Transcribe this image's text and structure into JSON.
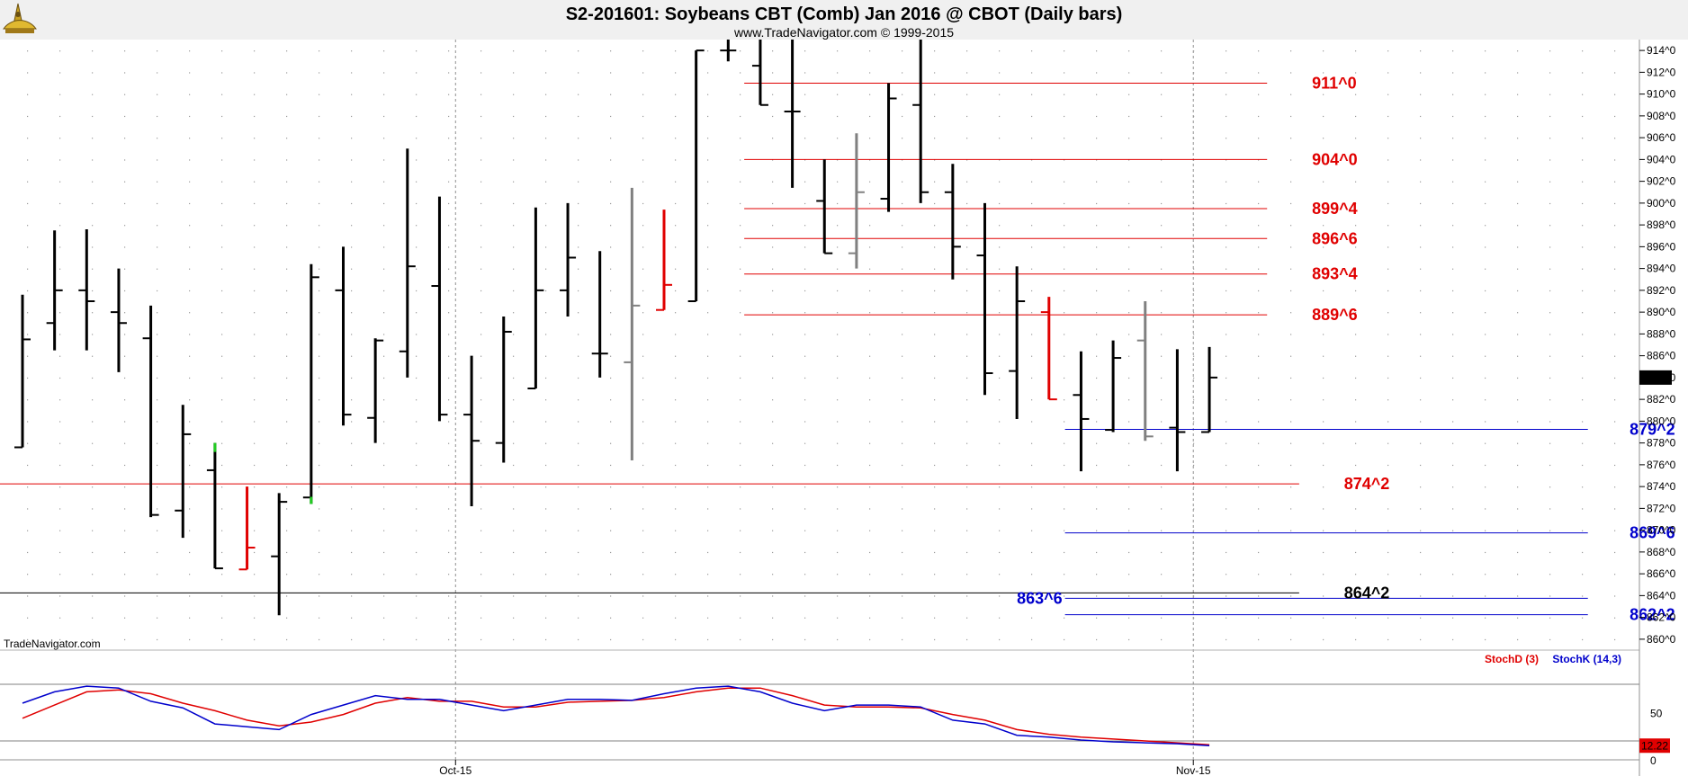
{
  "header": {
    "title": "S2-201601:  Soybeans CBT (Comb) Jan 2016 @ CBOT  (Daily bars)",
    "subtitle": "www.TradeNavigator.com © 1999-2015",
    "watermark": "TradeNavigator.com",
    "logo": "trade-navigator-sextant-logo"
  },
  "chart_data": {
    "type": "ohlc-bar",
    "title": "S2-201601:  Soybeans CBT (Comb) Jan 2016 @ CBOT  (Daily bars)",
    "price_axis": {
      "ylim": [
        859,
        915
      ],
      "tick_values": [
        860,
        862,
        864,
        866,
        868,
        870,
        872,
        874,
        876,
        878,
        880,
        882,
        884,
        886,
        888,
        890,
        892,
        894,
        896,
        898,
        900,
        902,
        904,
        906,
        908,
        910,
        912,
        914
      ],
      "tick_labels": [
        "860^0",
        "862^0",
        "864^0",
        "866^0",
        "868^0",
        "870^0",
        "872^0",
        "874^0",
        "876^0",
        "878^0",
        "880^0",
        "882^0",
        "884^0",
        "886^0",
        "888^0",
        "890^0",
        "892^0",
        "894^0",
        "896^0",
        "898^0",
        "900^0",
        "902^0",
        "904^0",
        "906^0",
        "908^0",
        "910^0",
        "912^0",
        "914^0"
      ],
      "last_price_label": "884^0",
      "last_price": 884.0,
      "label_side": "right"
    },
    "date_axis": {
      "labels": [
        {
          "text": "Oct-15",
          "bar_index": 13.5
        },
        {
          "text": "Nov-15",
          "bar_index": 36.5
        }
      ],
      "vertical_gridlines_at_bar": [
        13.5,
        36.5
      ]
    },
    "bars": [
      {
        "open": 877.6,
        "high": 891.6,
        "low": 877.6,
        "close": 887.5,
        "color": "#000000"
      },
      {
        "open": 889.0,
        "high": 897.5,
        "low": 886.5,
        "close": 892.0,
        "color": "#000000"
      },
      {
        "open": 892.0,
        "high": 897.6,
        "low": 886.5,
        "close": 891.0,
        "color": "#000000"
      },
      {
        "open": 890.0,
        "high": 894.0,
        "low": 884.5,
        "close": 889.0,
        "color": "#000000"
      },
      {
        "open": 887.6,
        "high": 890.6,
        "low": 871.2,
        "close": 871.4,
        "color": "#000000"
      },
      {
        "open": 871.8,
        "high": 881.5,
        "low": 869.3,
        "close": 878.8,
        "color": "#000000"
      },
      {
        "open": 875.5,
        "high": 878.0,
        "low": 866.5,
        "close": 866.5,
        "color": "#000000",
        "high_tick_color": "#22cc22"
      },
      {
        "open": 866.4,
        "high": 874.0,
        "low": 866.4,
        "close": 868.4,
        "color": "#e00000"
      },
      {
        "open": 867.6,
        "high": 873.4,
        "low": 862.2,
        "close": 872.6,
        "color": "#000000"
      },
      {
        "open": 873.0,
        "high": 894.4,
        "low": 872.4,
        "close": 893.2,
        "color": "#000000",
        "low_tick_color": "#22cc22"
      },
      {
        "open": 892.0,
        "high": 896.0,
        "low": 879.6,
        "close": 880.6,
        "color": "#000000"
      },
      {
        "open": 880.3,
        "high": 887.6,
        "low": 878.0,
        "close": 887.4,
        "color": "#000000"
      },
      {
        "open": 886.4,
        "high": 905.0,
        "low": 884.0,
        "close": 894.2,
        "color": "#000000"
      },
      {
        "open": 892.4,
        "high": 900.6,
        "low": 880.0,
        "close": 880.6,
        "color": "#000000"
      },
      {
        "open": 880.6,
        "high": 886.0,
        "low": 872.2,
        "close": 878.2,
        "color": "#000000"
      },
      {
        "open": 878.0,
        "high": 889.6,
        "low": 876.2,
        "close": 888.2,
        "color": "#000000"
      },
      {
        "open": 883.0,
        "high": 899.6,
        "low": 883.0,
        "close": 892.0,
        "color": "#000000"
      },
      {
        "open": 892.0,
        "high": 900.0,
        "low": 889.6,
        "close": 895.0,
        "color": "#000000"
      },
      {
        "open": 886.2,
        "high": 895.6,
        "low": 884.0,
        "close": 886.2,
        "color": "#000000"
      },
      {
        "open": 885.4,
        "high": 901.4,
        "low": 876.4,
        "close": 890.6,
        "color": "#808080"
      },
      {
        "open": 890.2,
        "high": 899.4,
        "low": 890.2,
        "close": 892.5,
        "color": "#e00000"
      },
      {
        "open": 891.0,
        "high": 914.0,
        "low": 891.0,
        "close": 914.0,
        "color": "#000000"
      },
      {
        "open": 914.0,
        "high": 915.0,
        "low": 913.0,
        "close": 914.0,
        "color": "#000000"
      },
      {
        "open": 912.6,
        "high": 915.0,
        "low": 909.0,
        "close": 909.0,
        "color": "#000000"
      },
      {
        "open": 908.4,
        "high": 915.0,
        "low": 901.4,
        "close": 908.4,
        "color": "#000000"
      },
      {
        "open": 900.2,
        "high": 904.0,
        "low": 895.4,
        "close": 895.4,
        "color": "#000000"
      },
      {
        "open": 895.4,
        "high": 906.4,
        "low": 894.0,
        "close": 901.0,
        "color": "#808080"
      },
      {
        "open": 900.4,
        "high": 911.0,
        "low": 899.2,
        "close": 909.6,
        "color": "#000000"
      },
      {
        "open": 909.0,
        "high": 915.0,
        "low": 900.0,
        "close": 901.0,
        "color": "#000000"
      },
      {
        "open": 901.0,
        "high": 903.6,
        "low": 893.0,
        "close": 896.0,
        "color": "#000000"
      },
      {
        "open": 895.2,
        "high": 900.0,
        "low": 882.4,
        "close": 884.4,
        "color": "#000000"
      },
      {
        "open": 884.6,
        "high": 894.2,
        "low": 880.2,
        "close": 891.0,
        "color": "#000000"
      },
      {
        "open": 890.0,
        "high": 891.4,
        "low": 882.0,
        "close": 882.0,
        "color": "#e00000"
      },
      {
        "open": 882.4,
        "high": 886.4,
        "low": 875.4,
        "close": 880.2,
        "color": "#000000"
      },
      {
        "open": 879.2,
        "high": 887.4,
        "low": 879.0,
        "close": 885.8,
        "color": "#000000"
      },
      {
        "open": 887.4,
        "high": 891.0,
        "low": 878.2,
        "close": 878.6,
        "color": "#808080"
      },
      {
        "open": 879.4,
        "high": 886.6,
        "low": 875.4,
        "close": 879.0,
        "color": "#000000"
      },
      {
        "open": 879.0,
        "high": 886.8,
        "low": 879.0,
        "close": 884.0,
        "color": "#000000"
      }
    ],
    "levels": [
      {
        "label": "911^0",
        "value": 911.0,
        "color": "#e00000",
        "x_from_bar": 22.5,
        "x_to_bar": 38.8,
        "label_bar": 40.2
      },
      {
        "label": "904^0",
        "value": 904.0,
        "color": "#e00000",
        "x_from_bar": 22.5,
        "x_to_bar": 38.8,
        "label_bar": 40.2
      },
      {
        "label": "899^4",
        "value": 899.5,
        "color": "#e00000",
        "x_from_bar": 22.5,
        "x_to_bar": 38.8,
        "label_bar": 40.2
      },
      {
        "label": "896^6",
        "value": 896.75,
        "color": "#e00000",
        "x_from_bar": 22.5,
        "x_to_bar": 38.8,
        "label_bar": 40.2
      },
      {
        "label": "893^4",
        "value": 893.5,
        "color": "#e00000",
        "x_from_bar": 22.5,
        "x_to_bar": 38.8,
        "label_bar": 40.2
      },
      {
        "label": "889^6",
        "value": 889.75,
        "color": "#e00000",
        "x_from_bar": 22.5,
        "x_to_bar": 38.8,
        "label_bar": 40.2
      },
      {
        "label": "879^2",
        "value": 879.25,
        "color": "#0000cc",
        "x_from_bar": 32.5,
        "x_to_bar": 48.8,
        "label_bar": 50.1
      },
      {
        "label": "874^2",
        "value": 874.25,
        "color": "#e00000",
        "x_from_bar": -1.0,
        "x_to_bar": 39.8,
        "label_bar": 41.2
      },
      {
        "label": "869^6",
        "value": 869.75,
        "color": "#0000cc",
        "x_from_bar": 32.5,
        "x_to_bar": 48.8,
        "label_bar": 50.1
      },
      {
        "label": "864^2",
        "value": 864.25,
        "color": "#000000",
        "x_from_bar": -1.0,
        "x_to_bar": 39.8,
        "label_bar": 41.2
      },
      {
        "label": "863^6",
        "value": 863.75,
        "color": "#0000cc",
        "x_from_bar": 32.5,
        "x_to_bar": 48.8,
        "label_bar": 31.0
      },
      {
        "label": "862^2",
        "value": 862.25,
        "color": "#0000cc",
        "x_from_bar": 32.5,
        "x_to_bar": 48.8,
        "label_bar": 50.1
      }
    ],
    "stochastic": {
      "legend": [
        {
          "name": "StochD (3)",
          "color": "#e00000"
        },
        {
          "name": "StochK (14,3)",
          "color": "#0000cc"
        }
      ],
      "ylim": [
        0,
        100
      ],
      "tick_values": [
        50,
        0
      ],
      "tick_labels": [
        "50",
        "0"
      ],
      "guide_levels": [
        80,
        20
      ],
      "last_value_label": "12.22",
      "stoch_k": [
        60,
        72,
        78,
        76,
        62,
        55,
        38,
        35,
        32,
        48,
        58,
        68,
        64,
        64,
        58,
        52,
        58,
        64,
        64,
        63,
        70,
        76,
        78,
        72,
        60,
        52,
        58,
        58,
        56,
        42,
        38,
        26,
        24,
        21,
        19,
        18,
        17,
        15
      ],
      "stoch_d": [
        44,
        58,
        72,
        74,
        70,
        60,
        52,
        42,
        36,
        40,
        48,
        60,
        66,
        62,
        62,
        56,
        56,
        61,
        62,
        63,
        66,
        72,
        76,
        76,
        68,
        58,
        56,
        56,
        55,
        48,
        42,
        32,
        27,
        24,
        22,
        20,
        18,
        16
      ]
    }
  }
}
